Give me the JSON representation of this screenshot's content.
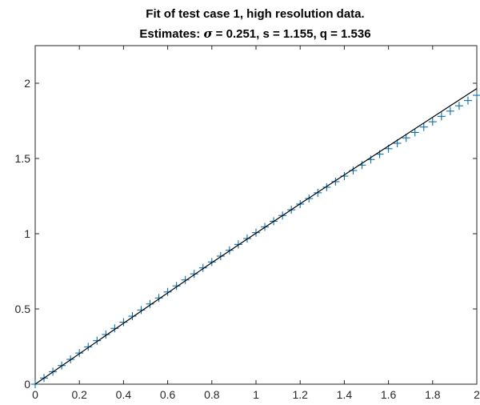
{
  "chart_data": {
    "type": "scatter",
    "title_line1": "Fit of test case 1, high resolution data.",
    "title_line2": {
      "prefix": "Estimates: ",
      "sigma_symbol": "σ",
      "rest": " = 0.251, s = 1.155, q = 1.536"
    },
    "xlabel": "",
    "ylabel": "",
    "xlim": [
      0,
      2
    ],
    "ylim": [
      0,
      2.25
    ],
    "xticks": [
      0,
      0.2,
      0.4,
      0.6,
      0.8,
      1,
      1.2,
      1.4,
      1.6,
      1.8,
      2
    ],
    "xtick_labels": [
      "0",
      "0.2",
      "0.4",
      "0.6",
      "0.8",
      "1",
      "1.2",
      "1.4",
      "1.6",
      "1.8",
      "2"
    ],
    "yticks": [
      0,
      0.5,
      1,
      1.5,
      2
    ],
    "ytick_labels": [
      "0",
      "0.5",
      "1",
      "1.5",
      "2"
    ],
    "grid": false,
    "series": [
      {
        "marker": "+",
        "color": "#0072bd",
        "x": [
          0.0,
          0.04,
          0.08,
          0.12,
          0.16,
          0.2,
          0.24,
          0.28,
          0.32,
          0.36,
          0.4,
          0.44,
          0.48,
          0.52,
          0.56,
          0.6,
          0.64,
          0.68,
          0.72,
          0.76,
          0.8,
          0.84,
          0.88,
          0.92,
          0.96,
          1.0,
          1.04,
          1.08,
          1.12,
          1.16,
          1.2,
          1.24,
          1.28,
          1.32,
          1.36,
          1.4,
          1.44,
          1.48,
          1.52,
          1.56,
          1.6,
          1.64,
          1.68,
          1.72,
          1.76,
          1.8,
          1.84,
          1.88,
          1.92,
          1.96,
          2.0
        ],
        "y": [
          0.0,
          0.041,
          0.083,
          0.124,
          0.165,
          0.207,
          0.248,
          0.289,
          0.33,
          0.371,
          0.412,
          0.452,
          0.493,
          0.533,
          0.573,
          0.613,
          0.653,
          0.693,
          0.733,
          0.773,
          0.812,
          0.851,
          0.89,
          0.929,
          0.968,
          1.007,
          1.045,
          1.083,
          1.121,
          1.159,
          1.197,
          1.234,
          1.272,
          1.309,
          1.346,
          1.383,
          1.42,
          1.456,
          1.493,
          1.529,
          1.565,
          1.601,
          1.637,
          1.673,
          1.709,
          1.744,
          1.78,
          1.815,
          1.85,
          1.885,
          1.92
        ]
      },
      {
        "line": true,
        "color": "#000000",
        "x": [
          0,
          0.4,
          0.8,
          1.2,
          1.6,
          2.0
        ],
        "y": [
          0,
          0.405,
          0.808,
          1.199,
          1.583,
          1.965
        ]
      }
    ]
  }
}
